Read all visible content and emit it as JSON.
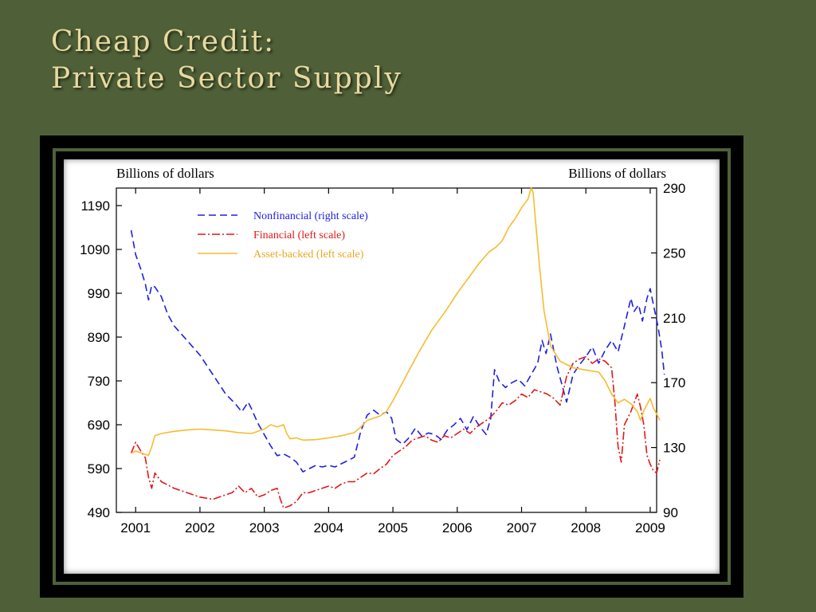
{
  "slide": {
    "title_line1": "Cheap Credit:",
    "title_line2": "Private Sector Supply"
  },
  "chart_data": {
    "type": "line",
    "left_axis_label": "Billions of dollars",
    "right_axis_label": "Billions of dollars",
    "x_ticks": [
      "2001",
      "2002",
      "2003",
      "2004",
      "2005",
      "2006",
      "2007",
      "2008",
      "2009"
    ],
    "xlim": [
      2000.7,
      2009.1
    ],
    "ylim_left": [
      490,
      1230
    ],
    "ylim_right": [
      90,
      290
    ],
    "y_ticks_left": [
      490,
      590,
      690,
      790,
      890,
      990,
      1090,
      1190
    ],
    "y_ticks_right": [
      90,
      130,
      170,
      210,
      250,
      290
    ],
    "legend_position": "top-left",
    "series": [
      {
        "name": "Nonfinancial (right scale)",
        "axis": "right",
        "color": "#2020e0",
        "style": "dashed",
        "points": [
          [
            2000.93,
            264
          ],
          [
            2001.0,
            249
          ],
          [
            2001.08,
            240
          ],
          [
            2001.15,
            231
          ],
          [
            2001.2,
            221
          ],
          [
            2001.25,
            230
          ],
          [
            2001.3,
            229
          ],
          [
            2001.4,
            223
          ],
          [
            2001.5,
            212
          ],
          [
            2001.6,
            205
          ],
          [
            2001.8,
            196
          ],
          [
            2002.0,
            187
          ],
          [
            2002.2,
            175
          ],
          [
            2002.4,
            163
          ],
          [
            2002.55,
            157
          ],
          [
            2002.65,
            152
          ],
          [
            2002.75,
            158
          ],
          [
            2002.8,
            154
          ],
          [
            2002.9,
            145
          ],
          [
            2003.0,
            138
          ],
          [
            2003.1,
            131
          ],
          [
            2003.2,
            125
          ],
          [
            2003.3,
            126
          ],
          [
            2003.4,
            124
          ],
          [
            2003.5,
            121
          ],
          [
            2003.6,
            115
          ],
          [
            2003.7,
            117
          ],
          [
            2003.8,
            119
          ],
          [
            2003.9,
            118
          ],
          [
            2004.0,
            119
          ],
          [
            2004.1,
            118
          ],
          [
            2004.2,
            120
          ],
          [
            2004.3,
            122
          ],
          [
            2004.4,
            124
          ],
          [
            2004.5,
            140
          ],
          [
            2004.6,
            150
          ],
          [
            2004.7,
            153
          ],
          [
            2004.8,
            150
          ],
          [
            2004.9,
            152
          ],
          [
            2004.98,
            148
          ],
          [
            2005.05,
            135
          ],
          [
            2005.15,
            132
          ],
          [
            2005.25,
            136
          ],
          [
            2005.35,
            142
          ],
          [
            2005.45,
            137
          ],
          [
            2005.55,
            139
          ],
          [
            2005.65,
            138
          ],
          [
            2005.75,
            135
          ],
          [
            2005.85,
            141
          ],
          [
            2005.95,
            144
          ],
          [
            2006.05,
            148
          ],
          [
            2006.15,
            141
          ],
          [
            2006.25,
            149
          ],
          [
            2006.35,
            143
          ],
          [
            2006.45,
            138
          ],
          [
            2006.52,
            148
          ],
          [
            2006.58,
            178
          ],
          [
            2006.65,
            171
          ],
          [
            2006.75,
            167
          ],
          [
            2006.85,
            170
          ],
          [
            2006.95,
            172
          ],
          [
            2007.05,
            168
          ],
          [
            2007.15,
            175
          ],
          [
            2007.25,
            182
          ],
          [
            2007.32,
            196
          ],
          [
            2007.38,
            188
          ],
          [
            2007.45,
            200
          ],
          [
            2007.55,
            180
          ],
          [
            2007.62,
            170
          ],
          [
            2007.7,
            158
          ],
          [
            2007.8,
            175
          ],
          [
            2007.9,
            181
          ],
          [
            2008.0,
            186
          ],
          [
            2008.1,
            192
          ],
          [
            2008.2,
            182
          ],
          [
            2008.3,
            190
          ],
          [
            2008.4,
            196
          ],
          [
            2008.5,
            189
          ],
          [
            2008.6,
            205
          ],
          [
            2008.7,
            222
          ],
          [
            2008.75,
            214
          ],
          [
            2008.82,
            218
          ],
          [
            2008.88,
            208
          ],
          [
            2008.95,
            222
          ],
          [
            2009.0,
            228
          ],
          [
            2009.05,
            218
          ],
          [
            2009.12,
            205
          ],
          [
            2009.18,
            190
          ],
          [
            2009.22,
            175
          ]
        ]
      },
      {
        "name": "Financial (left scale)",
        "axis": "left",
        "color": "#e01818",
        "style": "dash-dot",
        "points": [
          [
            2000.93,
            625
          ],
          [
            2001.0,
            650
          ],
          [
            2001.08,
            630
          ],
          [
            2001.15,
            615
          ],
          [
            2001.2,
            570
          ],
          [
            2001.25,
            545
          ],
          [
            2001.3,
            580
          ],
          [
            2001.4,
            560
          ],
          [
            2001.6,
            545
          ],
          [
            2001.8,
            535
          ],
          [
            2002.0,
            525
          ],
          [
            2002.2,
            520
          ],
          [
            2002.4,
            530
          ],
          [
            2002.5,
            535
          ],
          [
            2002.6,
            550
          ],
          [
            2002.7,
            535
          ],
          [
            2002.8,
            545
          ],
          [
            2002.9,
            525
          ],
          [
            2003.0,
            530
          ],
          [
            2003.1,
            540
          ],
          [
            2003.2,
            545
          ],
          [
            2003.25,
            520
          ],
          [
            2003.3,
            500
          ],
          [
            2003.4,
            505
          ],
          [
            2003.5,
            515
          ],
          [
            2003.6,
            535
          ],
          [
            2003.7,
            535
          ],
          [
            2003.8,
            540
          ],
          [
            2003.9,
            545
          ],
          [
            2004.0,
            550
          ],
          [
            2004.1,
            545
          ],
          [
            2004.2,
            555
          ],
          [
            2004.3,
            560
          ],
          [
            2004.4,
            560
          ],
          [
            2004.5,
            570
          ],
          [
            2004.6,
            580
          ],
          [
            2004.7,
            578
          ],
          [
            2004.8,
            590
          ],
          [
            2004.9,
            600
          ],
          [
            2005.0,
            620
          ],
          [
            2005.1,
            630
          ],
          [
            2005.2,
            640
          ],
          [
            2005.3,
            655
          ],
          [
            2005.4,
            660
          ],
          [
            2005.5,
            665
          ],
          [
            2005.6,
            655
          ],
          [
            2005.7,
            650
          ],
          [
            2005.8,
            665
          ],
          [
            2005.9,
            660
          ],
          [
            2006.0,
            670
          ],
          [
            2006.1,
            680
          ],
          [
            2006.2,
            670
          ],
          [
            2006.3,
            685
          ],
          [
            2006.4,
            695
          ],
          [
            2006.5,
            705
          ],
          [
            2006.6,
            720
          ],
          [
            2006.7,
            740
          ],
          [
            2006.8,
            735
          ],
          [
            2006.9,
            745
          ],
          [
            2007.0,
            760
          ],
          [
            2007.1,
            752
          ],
          [
            2007.2,
            770
          ],
          [
            2007.3,
            765
          ],
          [
            2007.4,
            760
          ],
          [
            2007.5,
            750
          ],
          [
            2007.6,
            735
          ],
          [
            2007.7,
            800
          ],
          [
            2007.8,
            830
          ],
          [
            2007.9,
            840
          ],
          [
            2008.0,
            845
          ],
          [
            2008.1,
            830
          ],
          [
            2008.2,
            840
          ],
          [
            2008.3,
            835
          ],
          [
            2008.4,
            820
          ],
          [
            2008.45,
            745
          ],
          [
            2008.5,
            640
          ],
          [
            2008.55,
            605
          ],
          [
            2008.6,
            690
          ],
          [
            2008.7,
            720
          ],
          [
            2008.8,
            760
          ],
          [
            2008.85,
            730
          ],
          [
            2008.9,
            690
          ],
          [
            2008.95,
            620
          ],
          [
            2009.0,
            600
          ],
          [
            2009.05,
            585
          ],
          [
            2009.1,
            580
          ],
          [
            2009.15,
            610
          ]
        ]
      },
      {
        "name": "Asset-backed (left scale)",
        "axis": "left",
        "color": "#f5bc30",
        "style": "solid",
        "points": [
          [
            2000.93,
            625
          ],
          [
            2001.0,
            630
          ],
          [
            2001.1,
            625
          ],
          [
            2001.2,
            620
          ],
          [
            2001.25,
            640
          ],
          [
            2001.3,
            665
          ],
          [
            2001.4,
            670
          ],
          [
            2001.6,
            675
          ],
          [
            2001.8,
            678
          ],
          [
            2002.0,
            680
          ],
          [
            2002.2,
            678
          ],
          [
            2002.4,
            676
          ],
          [
            2002.6,
            672
          ],
          [
            2002.8,
            670
          ],
          [
            2003.0,
            680
          ],
          [
            2003.1,
            690
          ],
          [
            2003.2,
            685
          ],
          [
            2003.3,
            690
          ],
          [
            2003.35,
            670
          ],
          [
            2003.4,
            658
          ],
          [
            2003.5,
            660
          ],
          [
            2003.6,
            655
          ],
          [
            2003.8,
            656
          ],
          [
            2004.0,
            660
          ],
          [
            2004.2,
            665
          ],
          [
            2004.4,
            672
          ],
          [
            2004.5,
            685
          ],
          [
            2004.6,
            700
          ],
          [
            2004.7,
            705
          ],
          [
            2004.8,
            710
          ],
          [
            2004.9,
            720
          ],
          [
            2005.0,
            745
          ],
          [
            2005.2,
            800
          ],
          [
            2005.4,
            855
          ],
          [
            2005.6,
            905
          ],
          [
            2005.8,
            945
          ],
          [
            2006.0,
            990
          ],
          [
            2006.2,
            1030
          ],
          [
            2006.35,
            1060
          ],
          [
            2006.5,
            1085
          ],
          [
            2006.6,
            1095
          ],
          [
            2006.7,
            1110
          ],
          [
            2006.8,
            1140
          ],
          [
            2006.9,
            1160
          ],
          [
            2007.0,
            1185
          ],
          [
            2007.1,
            1205
          ],
          [
            2007.15,
            1230
          ],
          [
            2007.18,
            1220
          ],
          [
            2007.22,
            1150
          ],
          [
            2007.28,
            1050
          ],
          [
            2007.35,
            950
          ],
          [
            2007.45,
            870
          ],
          [
            2007.6,
            835
          ],
          [
            2007.8,
            820
          ],
          [
            2008.0,
            815
          ],
          [
            2008.2,
            810
          ],
          [
            2008.3,
            790
          ],
          [
            2008.4,
            760
          ],
          [
            2008.5,
            740
          ],
          [
            2008.6,
            748
          ],
          [
            2008.7,
            738
          ],
          [
            2008.8,
            720
          ],
          [
            2008.85,
            700
          ],
          [
            2008.9,
            722
          ],
          [
            2009.0,
            750
          ],
          [
            2009.05,
            728
          ],
          [
            2009.1,
            715
          ],
          [
            2009.15,
            700
          ]
        ]
      }
    ]
  }
}
